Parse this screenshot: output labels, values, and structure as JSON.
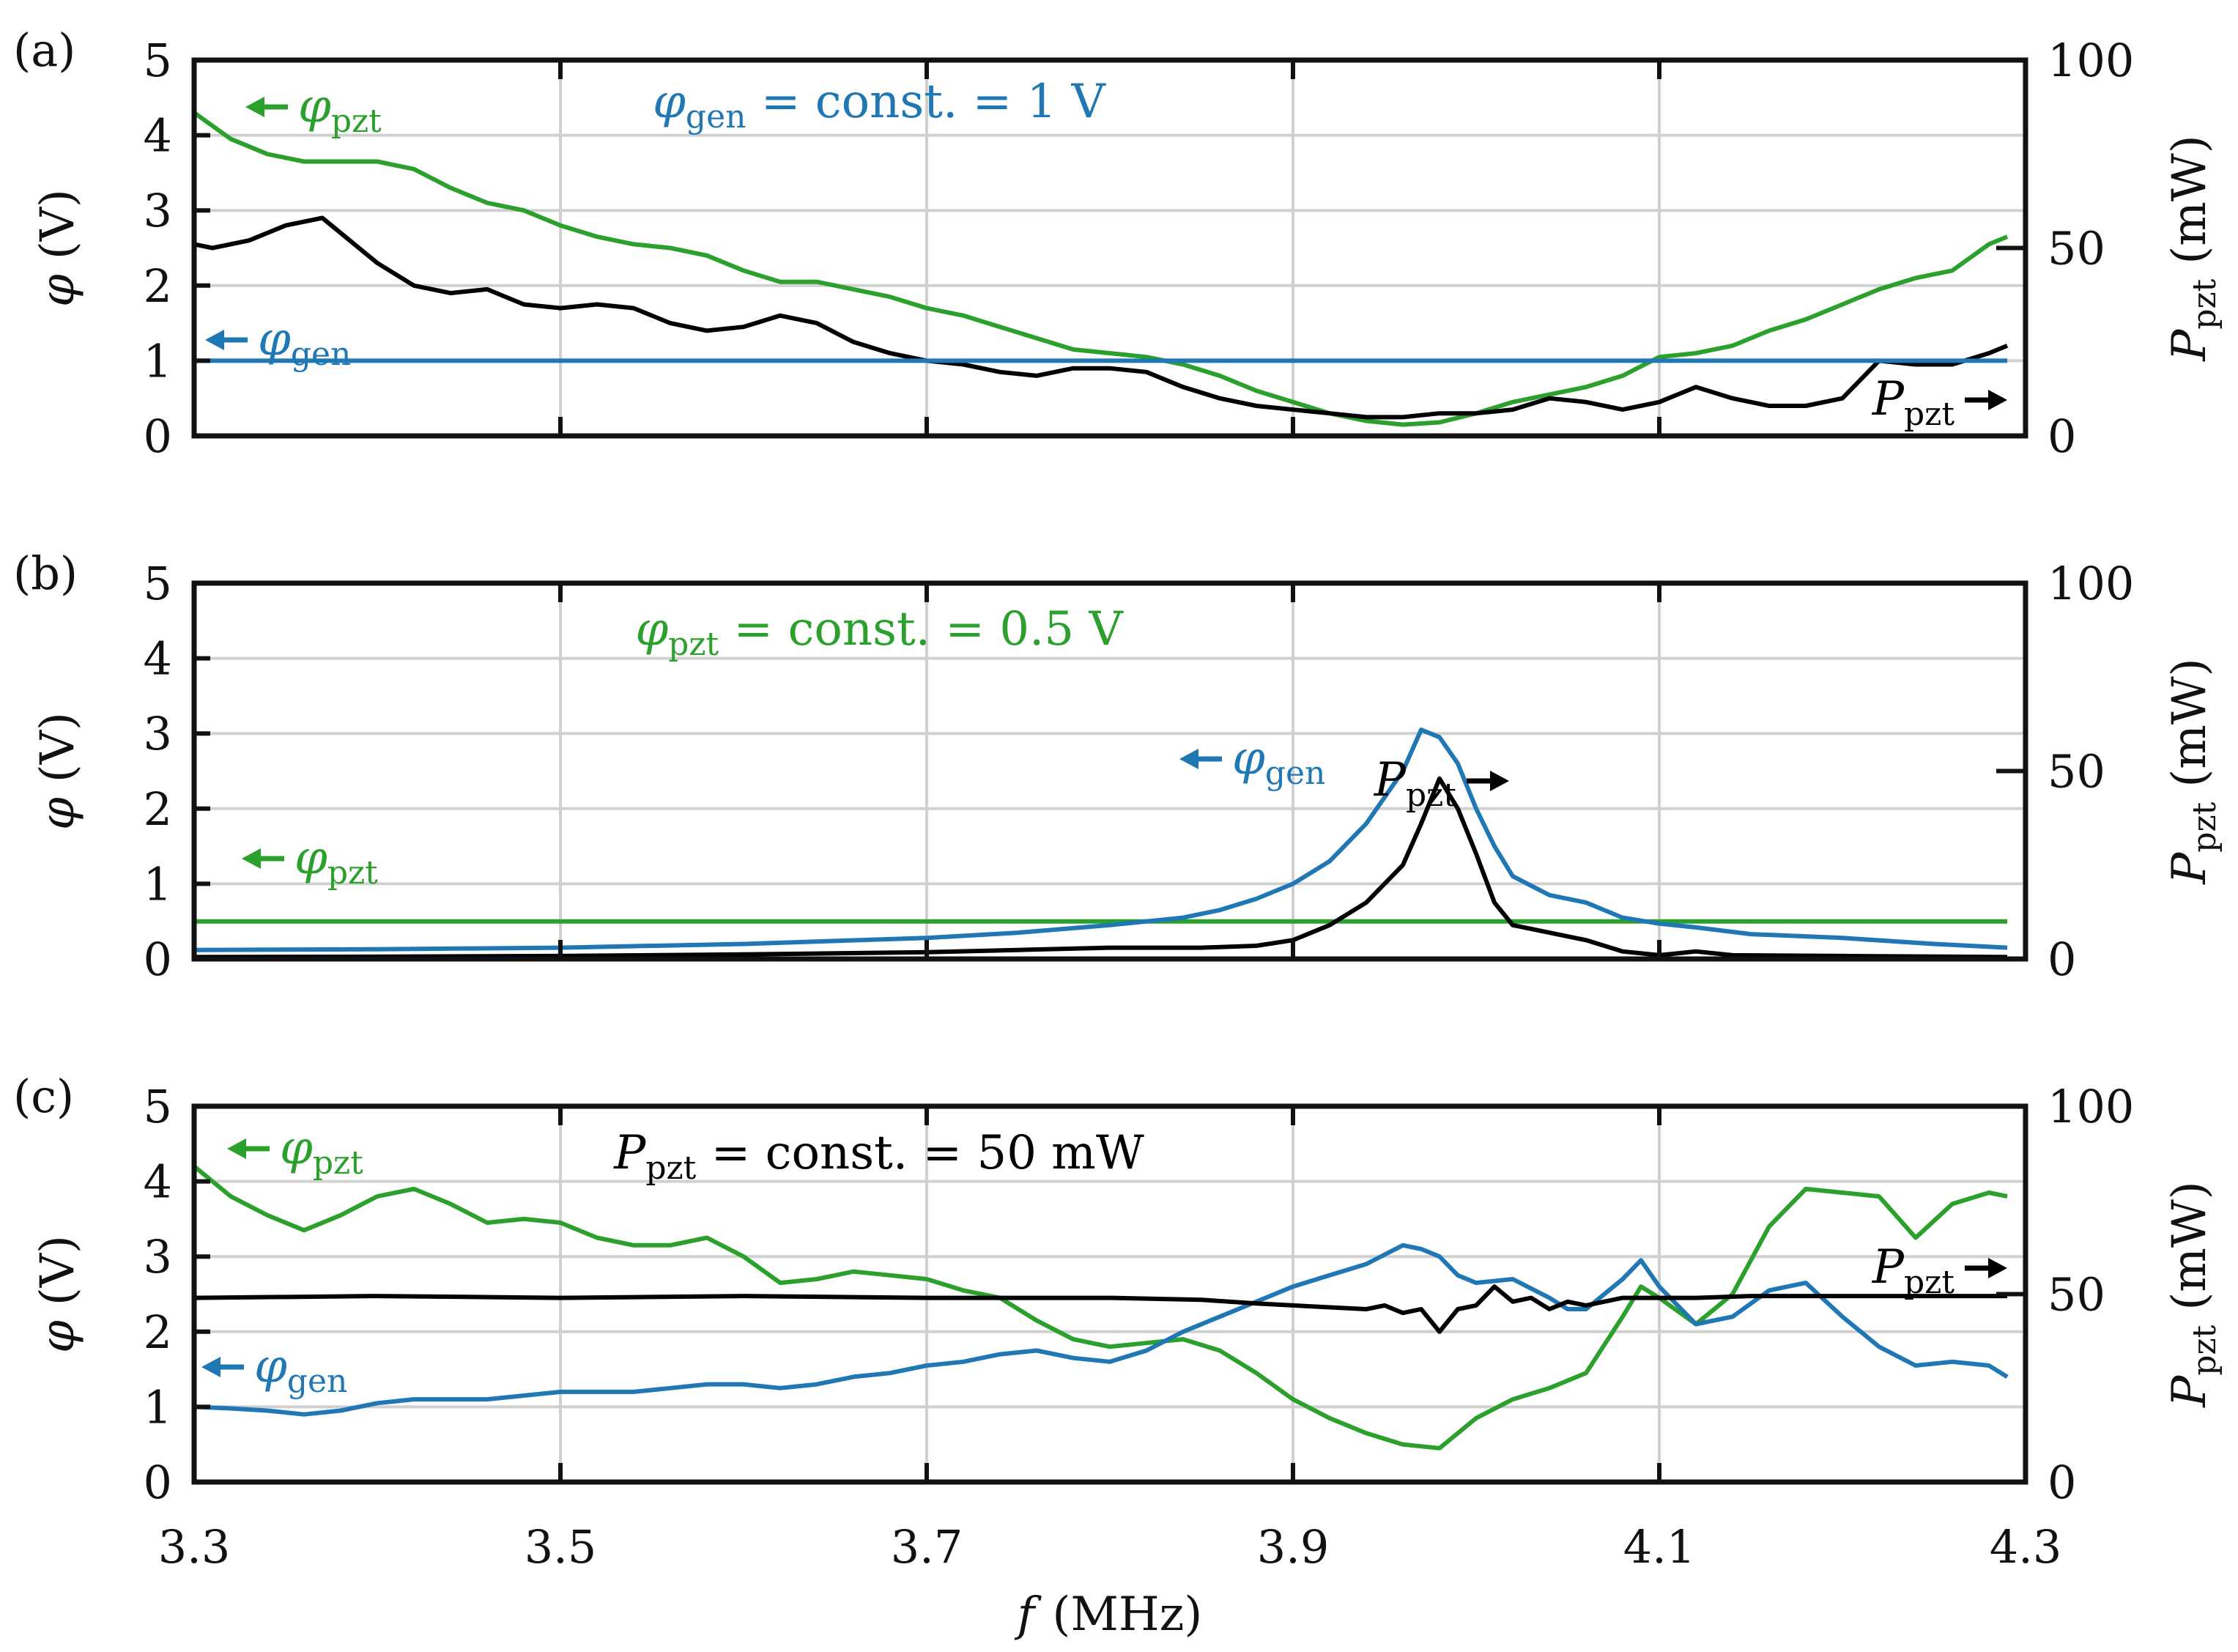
{
  "chart_data": [
    {
      "type": "line",
      "panel_letter": "(a)",
      "xlim": [
        3.3,
        4.3
      ],
      "ylim_left": [
        0,
        5
      ],
      "ylim_right": [
        0,
        100
      ],
      "y_ticks_left": [
        "0",
        "1",
        "2",
        "3",
        "4",
        "5"
      ],
      "y_ticks_right": [
        "0",
        "50",
        "100"
      ],
      "ylabel_left": "φ (V)",
      "ylabel_right": "P",
      "ylabel_right_sub": "pzt",
      "ylabel_right_unit": "(mW)",
      "constant_label": "φgen = const. = 1 V",
      "constant_main": "φ",
      "constant_sub": "gen",
      "constant_rest": " = const. = 1 V",
      "constant_color": "#1f77b4",
      "series": [
        {
          "name": "φpzt",
          "color": "#2ca02c",
          "axis": "left",
          "x": [
            3.3,
            3.32,
            3.34,
            3.36,
            3.38,
            3.4,
            3.42,
            3.44,
            3.46,
            3.48,
            3.5,
            3.52,
            3.54,
            3.56,
            3.58,
            3.6,
            3.62,
            3.64,
            3.66,
            3.68,
            3.7,
            3.72,
            3.74,
            3.76,
            3.78,
            3.8,
            3.82,
            3.84,
            3.86,
            3.88,
            3.9,
            3.92,
            3.94,
            3.96,
            3.98,
            4.0,
            4.02,
            4.04,
            4.06,
            4.08,
            4.1,
            4.12,
            4.14,
            4.16,
            4.18,
            4.2,
            4.22,
            4.24,
            4.26,
            4.28,
            4.29
          ],
          "y": [
            4.3,
            3.95,
            3.75,
            3.65,
            3.65,
            3.65,
            3.55,
            3.3,
            3.1,
            3.0,
            2.8,
            2.65,
            2.55,
            2.5,
            2.4,
            2.2,
            2.05,
            2.05,
            1.95,
            1.85,
            1.7,
            1.6,
            1.45,
            1.3,
            1.15,
            1.1,
            1.05,
            0.95,
            0.8,
            0.6,
            0.45,
            0.3,
            0.2,
            0.15,
            0.18,
            0.3,
            0.45,
            0.55,
            0.65,
            0.8,
            1.05,
            1.1,
            1.2,
            1.4,
            1.55,
            1.75,
            1.95,
            2.1,
            2.2,
            2.55,
            2.65
          ]
        },
        {
          "name": "P_pzt",
          "color": "#000000",
          "axis": "right",
          "x": [
            3.3,
            3.31,
            3.33,
            3.35,
            3.37,
            3.38,
            3.4,
            3.42,
            3.44,
            3.46,
            3.48,
            3.5,
            3.52,
            3.54,
            3.56,
            3.58,
            3.6,
            3.62,
            3.64,
            3.66,
            3.68,
            3.7,
            3.72,
            3.74,
            3.76,
            3.78,
            3.8,
            3.82,
            3.84,
            3.86,
            3.88,
            3.9,
            3.92,
            3.94,
            3.96,
            3.98,
            4.0,
            4.02,
            4.04,
            4.06,
            4.08,
            4.1,
            4.12,
            4.14,
            4.16,
            4.18,
            4.2,
            4.22,
            4.24,
            4.26,
            4.28,
            4.29
          ],
          "y": [
            51,
            50,
            52,
            56,
            58,
            54,
            46,
            40,
            38,
            39,
            35,
            34,
            35,
            34,
            30,
            28,
            29,
            32,
            30,
            25,
            22,
            20,
            19,
            17,
            16,
            18,
            18,
            17,
            13,
            10,
            8,
            7,
            6,
            5,
            5,
            6,
            6,
            7,
            10,
            9,
            7,
            9,
            13,
            10,
            8,
            8,
            10,
            20,
            19,
            19,
            22,
            24
          ]
        },
        {
          "name": "φgen",
          "color": "#1f77b4",
          "axis": "left",
          "x": [
            3.3,
            4.29
          ],
          "y": [
            1.0,
            1.0
          ]
        }
      ],
      "annotations": {
        "green_main": "φ",
        "green_sub": "pzt",
        "blue_main": "φ",
        "blue_sub": "gen",
        "black_main": "P",
        "black_sub": "pzt"
      }
    },
    {
      "type": "line",
      "panel_letter": "(b)",
      "xlim": [
        3.3,
        4.3
      ],
      "ylim_left": [
        0,
        5
      ],
      "ylim_right": [
        0,
        100
      ],
      "y_ticks_left": [
        "0",
        "1",
        "2",
        "3",
        "4",
        "5"
      ],
      "y_ticks_right": [
        "0",
        "50",
        "100"
      ],
      "ylabel_left": "φ (V)",
      "ylabel_right": "P",
      "ylabel_right_sub": "pzt",
      "ylabel_right_unit": "(mW)",
      "constant_label": "φpzt = const. = 0.5 V",
      "constant_main": "φ",
      "constant_sub": "pzt",
      "constant_rest": " = const. = 0.5 V",
      "constant_color": "#2ca02c",
      "series": [
        {
          "name": "φpzt",
          "color": "#2ca02c",
          "axis": "left",
          "x": [
            3.3,
            4.29
          ],
          "y": [
            0.5,
            0.5
          ]
        },
        {
          "name": "φgen",
          "color": "#1f77b4",
          "axis": "left",
          "x": [
            3.3,
            3.4,
            3.5,
            3.6,
            3.7,
            3.75,
            3.8,
            3.84,
            3.86,
            3.88,
            3.9,
            3.92,
            3.94,
            3.96,
            3.97,
            3.98,
            3.99,
            4.0,
            4.01,
            4.02,
            4.04,
            4.06,
            4.08,
            4.1,
            4.12,
            4.15,
            4.2,
            4.25,
            4.29
          ],
          "y": [
            0.12,
            0.13,
            0.15,
            0.2,
            0.28,
            0.35,
            0.45,
            0.55,
            0.65,
            0.8,
            1.0,
            1.3,
            1.8,
            2.5,
            3.05,
            2.95,
            2.6,
            2.0,
            1.5,
            1.1,
            0.85,
            0.75,
            0.55,
            0.47,
            0.42,
            0.33,
            0.28,
            0.2,
            0.15
          ]
        },
        {
          "name": "P_pzt",
          "color": "#000000",
          "axis": "right",
          "x": [
            3.3,
            3.4,
            3.5,
            3.6,
            3.7,
            3.75,
            3.8,
            3.85,
            3.88,
            3.9,
            3.92,
            3.94,
            3.96,
            3.97,
            3.98,
            3.99,
            4.0,
            4.01,
            4.02,
            4.04,
            4.06,
            4.08,
            4.1,
            4.12,
            4.14,
            4.2,
            4.29
          ],
          "y": [
            0.5,
            0.6,
            0.8,
            1.2,
            1.8,
            2.4,
            3,
            3,
            3.5,
            5,
            9,
            15,
            25,
            36,
            48,
            40,
            28,
            15,
            9,
            7,
            5,
            2,
            1,
            2,
            1,
            0.8,
            0.5
          ]
        }
      ],
      "annotations": {
        "green_main": "φ",
        "green_sub": "pzt",
        "blue_main": "φ",
        "blue_sub": "gen",
        "black_main": "P",
        "black_sub": "pzt"
      }
    },
    {
      "type": "line",
      "panel_letter": "(c)",
      "xlim": [
        3.3,
        4.3
      ],
      "ylim_left": [
        0,
        5
      ],
      "ylim_right": [
        0,
        100
      ],
      "y_ticks_left": [
        "0",
        "1",
        "2",
        "3",
        "4",
        "5"
      ],
      "y_ticks_right": [
        "0",
        "50",
        "100"
      ],
      "x_ticks": [
        "3.3",
        "3.5",
        "3.7",
        "3.9",
        "4.1",
        "4.3"
      ],
      "xlabel_main": "f",
      "xlabel_unit": "(MHz)",
      "ylabel_left": "φ (V)",
      "ylabel_right": "P",
      "ylabel_right_sub": "pzt",
      "ylabel_right_unit": "(mW)",
      "constant_label": "Ppzt = const. = 50 mW",
      "constant_main": "P",
      "constant_sub": "pzt",
      "constant_rest": " = const. = 50 mW",
      "constant_color": "#000000",
      "series": [
        {
          "name": "φpzt",
          "color": "#2ca02c",
          "axis": "left",
          "x": [
            3.3,
            3.32,
            3.34,
            3.36,
            3.38,
            3.4,
            3.42,
            3.44,
            3.46,
            3.48,
            3.5,
            3.52,
            3.54,
            3.56,
            3.58,
            3.6,
            3.62,
            3.64,
            3.66,
            3.68,
            3.7,
            3.72,
            3.74,
            3.76,
            3.78,
            3.8,
            3.82,
            3.84,
            3.86,
            3.88,
            3.9,
            3.92,
            3.94,
            3.96,
            3.98,
            4.0,
            4.02,
            4.04,
            4.06,
            4.08,
            4.09,
            4.1,
            4.12,
            4.14,
            4.16,
            4.18,
            4.2,
            4.22,
            4.24,
            4.26,
            4.28,
            4.29
          ],
          "y": [
            4.2,
            3.8,
            3.55,
            3.35,
            3.55,
            3.8,
            3.9,
            3.7,
            3.45,
            3.5,
            3.45,
            3.25,
            3.15,
            3.15,
            3.25,
            3.0,
            2.65,
            2.7,
            2.8,
            2.75,
            2.7,
            2.55,
            2.45,
            2.15,
            1.9,
            1.8,
            1.85,
            1.9,
            1.75,
            1.45,
            1.1,
            0.85,
            0.65,
            0.5,
            0.45,
            0.85,
            1.1,
            1.25,
            1.45,
            2.2,
            2.6,
            2.45,
            2.1,
            2.5,
            3.4,
            3.9,
            3.85,
            3.8,
            3.25,
            3.7,
            3.85,
            3.8
          ]
        },
        {
          "name": "φgen",
          "color": "#1f77b4",
          "axis": "left",
          "x": [
            3.3,
            3.32,
            3.34,
            3.36,
            3.38,
            3.4,
            3.42,
            3.44,
            3.46,
            3.48,
            3.5,
            3.52,
            3.54,
            3.56,
            3.58,
            3.6,
            3.62,
            3.64,
            3.66,
            3.68,
            3.7,
            3.72,
            3.74,
            3.76,
            3.78,
            3.8,
            3.82,
            3.84,
            3.86,
            3.88,
            3.9,
            3.92,
            3.94,
            3.96,
            3.97,
            3.98,
            3.99,
            4.0,
            4.02,
            4.04,
            4.05,
            4.06,
            4.08,
            4.09,
            4.1,
            4.12,
            4.14,
            4.16,
            4.18,
            4.2,
            4.22,
            4.24,
            4.26,
            4.28,
            4.29
          ],
          "y": [
            1.0,
            0.98,
            0.95,
            0.9,
            0.95,
            1.05,
            1.1,
            1.1,
            1.1,
            1.15,
            1.2,
            1.2,
            1.2,
            1.25,
            1.3,
            1.3,
            1.25,
            1.3,
            1.4,
            1.45,
            1.55,
            1.6,
            1.7,
            1.75,
            1.65,
            1.6,
            1.75,
            2.0,
            2.2,
            2.4,
            2.6,
            2.75,
            2.9,
            3.15,
            3.1,
            3.0,
            2.75,
            2.65,
            2.7,
            2.45,
            2.3,
            2.3,
            2.7,
            2.95,
            2.6,
            2.1,
            2.2,
            2.55,
            2.65,
            2.2,
            1.8,
            1.55,
            1.6,
            1.55,
            1.4
          ]
        },
        {
          "name": "P_pzt",
          "color": "#000000",
          "axis": "right",
          "x": [
            3.3,
            3.4,
            3.5,
            3.6,
            3.7,
            3.8,
            3.85,
            3.88,
            3.9,
            3.92,
            3.94,
            3.95,
            3.96,
            3.97,
            3.98,
            3.99,
            4.0,
            4.01,
            4.02,
            4.03,
            4.04,
            4.05,
            4.06,
            4.08,
            4.1,
            4.12,
            4.15,
            4.2,
            4.29
          ],
          "y": [
            49,
            49.5,
            49,
            49.5,
            49,
            49,
            48.5,
            47.5,
            47,
            46.5,
            46,
            47,
            45,
            46,
            40,
            46,
            47,
            52,
            48,
            49,
            46,
            48,
            47,
            49,
            49,
            49,
            49.5,
            49.5,
            49.5
          ]
        }
      ],
      "annotations": {
        "green_main": "φ",
        "green_sub": "pzt",
        "blue_main": "φ",
        "blue_sub": "gen",
        "black_main": "P",
        "black_sub": "pzt"
      }
    }
  ]
}
